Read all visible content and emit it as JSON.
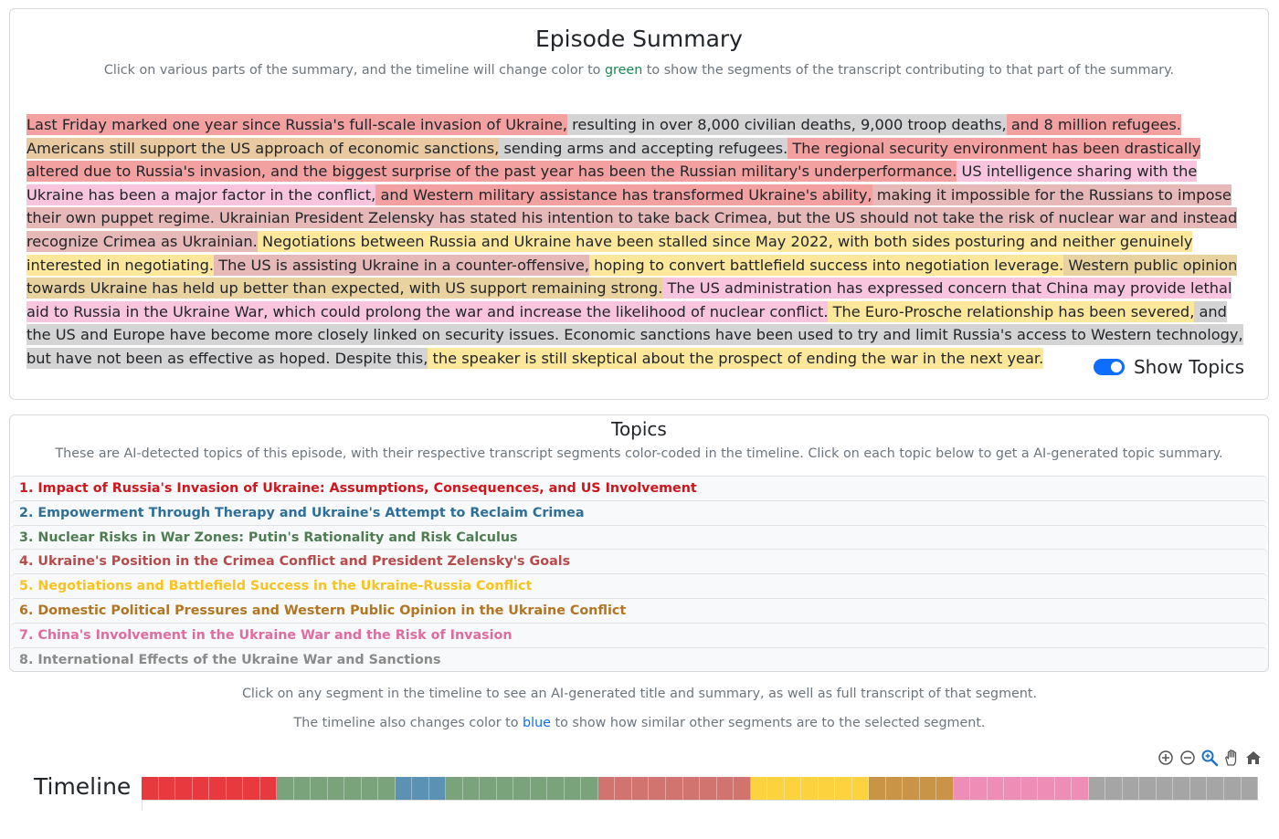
{
  "summary": {
    "title": "Episode Summary",
    "subtitle_before": "Click on various parts of the summary, and the timeline will change color to ",
    "subtitle_green": "green",
    "subtitle_after": " to show the segments of the transcript contributing to that part of the summary.",
    "segments": [
      {
        "text": "Last Friday marked one year since Russia's full-scale invasion of Ukraine,",
        "color": "#f2a0a0"
      },
      {
        "text": " resulting in over 8,000 civilian deaths, 9,000 troop deaths,",
        "color": "#d4d4d4"
      },
      {
        "text": " and 8 million refugees.",
        "color": "#f2a0a0"
      },
      {
        "text": " Americans still support the US approach of economic sanctions,",
        "color": "#e8c9a0"
      },
      {
        "text": " sending arms and accepting refugees.",
        "color": "#d4d4d4"
      },
      {
        "text": " The regional security environment has been drastically altered due to Russia's invasion, and the biggest surprise of the past year has been the Russian military's underperformance.",
        "color": "#f2a0a0"
      },
      {
        "text": " US intelligence sharing with the Ukraine has been a major factor in the conflict,",
        "color": "#f8c4de"
      },
      {
        "text": " and Western military assistance has transformed Ukraine's ability,",
        "color": "#f2a0a0"
      },
      {
        "text": " making it impossible for the Russians to impose their own puppet regime. Ukrainian President Zelensky has stated his intention to take back Crimea, but the US should not take the risk of nuclear war and instead recognize Crimea as Ukrainian.",
        "color": "#e6b8b8"
      },
      {
        "text": " Negotiations between Russia and Ukraine have been stalled since May 2022, with both sides posturing and neither genuinely interested in negotiating.",
        "color": "#fde79a"
      },
      {
        "text": " The US is assisting Ukraine in a counter-offensive,",
        "color": "#e6b8b8"
      },
      {
        "text": " hoping to convert battlefield success into negotiation leverage.",
        "color": "#fde79a"
      },
      {
        "text": " Western public opinion towards Ukraine has held up better than expected, with US support remaining strong.",
        "color": "#e8d2a0"
      },
      {
        "text": " The US administration has expressed concern that China may provide lethal aid to Russia in the Ukraine War, which could prolong the war and increase the likelihood of nuclear conflict.",
        "color": "#f8c4de"
      },
      {
        "text": " The Euro-Prosche relationship has been severed,",
        "color": "#fde79a"
      },
      {
        "text": " and the US and Europe have become more closely linked on security issues. Economic sanctions have been used to try and limit Russia's access to Western technology, but have not been as effective as hoped. Despite this,",
        "color": "#d4d4d4"
      },
      {
        "text": " the speaker is still skeptical about the prospect of ending the war in the next year.",
        "color": "#fde79a"
      }
    ],
    "toggle_label": "Show Topics",
    "toggle_on": true
  },
  "topics": {
    "title": "Topics",
    "subtitle": "These are AI-detected topics of this episode, with their respective transcript segments color-coded in the timeline. Click on each topic below to get a AI-generated topic summary.",
    "items": [
      {
        "label": "1. Impact of Russia's Invasion of Ukraine: Assumptions, Consequences, and US Involvement",
        "color": "#d0151c"
      },
      {
        "label": "2. Empowerment Through Therapy and Ukraine's Attempt to Reclaim Crimea",
        "color": "#2e6f9a"
      },
      {
        "label": "3. Nuclear Risks in War Zones: Putin's Rationality and Risk Calculus",
        "color": "#4e7d52"
      },
      {
        "label": "4. Ukraine's Position in the Crimea Conflict and President Zelensky's Goals",
        "color": "#b84a4a"
      },
      {
        "label": "5. Negotiations and Battlefield Success in the Ukraine-Russia Conflict",
        "color": "#f7c31f"
      },
      {
        "label": "6. Domestic Political Pressures and Western Public Opinion in the Ukraine Conflict",
        "color": "#b27522"
      },
      {
        "label": "7. China's Involvement in the Ukraine War and the Risk of Invasion",
        "color": "#e06ba0"
      },
      {
        "label": "8. International Effects of the Ukraine War and Sanctions",
        "color": "#8a8a8a"
      }
    ]
  },
  "info": {
    "line1": "Click on any segment in the timeline to see an AI-generated title and summary, as well as full transcript of that segment.",
    "line2_before": "The timeline also changes color to ",
    "line2_blue": "blue",
    "line2_after": " to show how similar other segments are to the selected segment."
  },
  "timeline": {
    "title": "Timeline",
    "tools": [
      "zoom-in-icon",
      "zoom-out-icon",
      "zoom-select-icon",
      "pan-hand-icon",
      "home-icon"
    ],
    "segments": [
      {
        "topic": 1,
        "count": 8,
        "color": "#e8393f"
      },
      {
        "topic": 3,
        "count": 7,
        "color": "#7aa37c"
      },
      {
        "topic": 2,
        "count": 3,
        "color": "#5b91b3"
      },
      {
        "topic": 3,
        "count": 9,
        "color": "#7aa37c"
      },
      {
        "topic": 4,
        "count": 9,
        "color": "#d1746f"
      },
      {
        "topic": 5,
        "count": 7,
        "color": "#fdd23f"
      },
      {
        "topic": 6,
        "count": 5,
        "color": "#c99446"
      },
      {
        "topic": 7,
        "count": 8,
        "color": "#ee8eb7"
      },
      {
        "topic": 8,
        "count": 10,
        "color": "#a5a5a5"
      }
    ]
  }
}
